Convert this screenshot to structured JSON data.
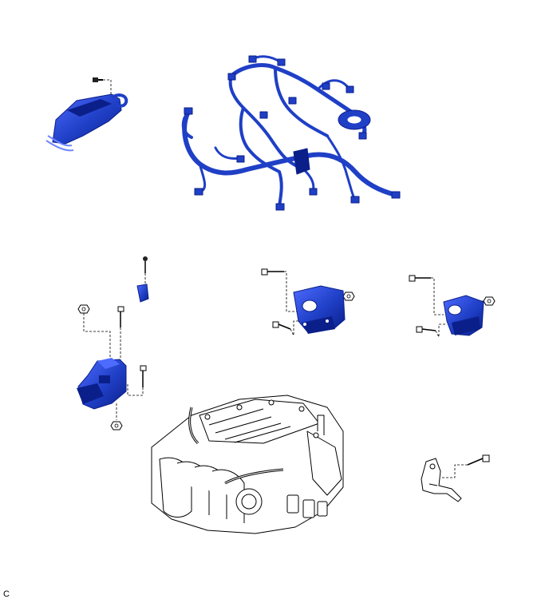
{
  "figure": {
    "corner_label": "C",
    "colors": {
      "part_fill": "#1f3fc6",
      "part_dark": "#0b1f8a",
      "part_light": "#4e6bff",
      "line": "#000000",
      "background": "#ffffff"
    },
    "parts": [
      "ecm-bracket",
      "engine-wire-harness",
      "engine-mounting-insulator-front",
      "engine-mounting-insulator-rh",
      "engine-mounting-insulator-lh",
      "engine-assembly",
      "engine-hanger-bracket"
    ]
  }
}
